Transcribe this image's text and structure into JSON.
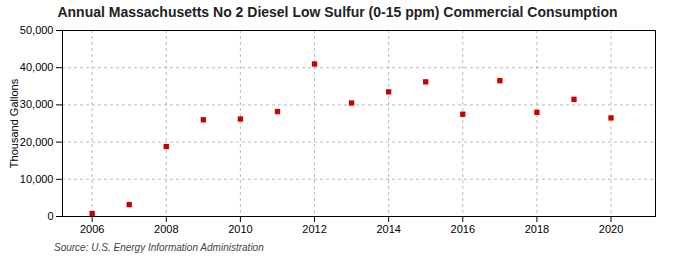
{
  "chart_data": {
    "type": "scatter",
    "title": "Annual Massachusetts No 2 Diesel Low Sulfur (0-15 ppm) Commercial Consumption",
    "ylabel": "Thousand Gallons",
    "source": "Source: U.S. Energy Information Administration",
    "x": [
      2006,
      2007,
      2008,
      2009,
      2010,
      2011,
      2012,
      2013,
      2014,
      2015,
      2016,
      2017,
      2018,
      2019,
      2020
    ],
    "values": [
      800,
      3200,
      18800,
      26000,
      26200,
      28200,
      41000,
      30500,
      33500,
      36200,
      27500,
      36500,
      28000,
      31500,
      26500
    ],
    "color": "#cc0000",
    "marker": "square",
    "xlim": [
      2005.2,
      2021.2
    ],
    "ylim": [
      0,
      50000
    ],
    "xticks": [
      2006,
      2008,
      2010,
      2012,
      2014,
      2016,
      2018,
      2020
    ],
    "yticks": [
      0,
      {
        "value": 10000,
        "label": "10,000"
      },
      {
        "value": 20000,
        "label": "20,000"
      },
      {
        "value": 30000,
        "label": "30,000"
      },
      {
        "value": 40000,
        "label": "40,000"
      },
      {
        "value": 50000,
        "label": "50,000"
      }
    ],
    "grid": true
  }
}
